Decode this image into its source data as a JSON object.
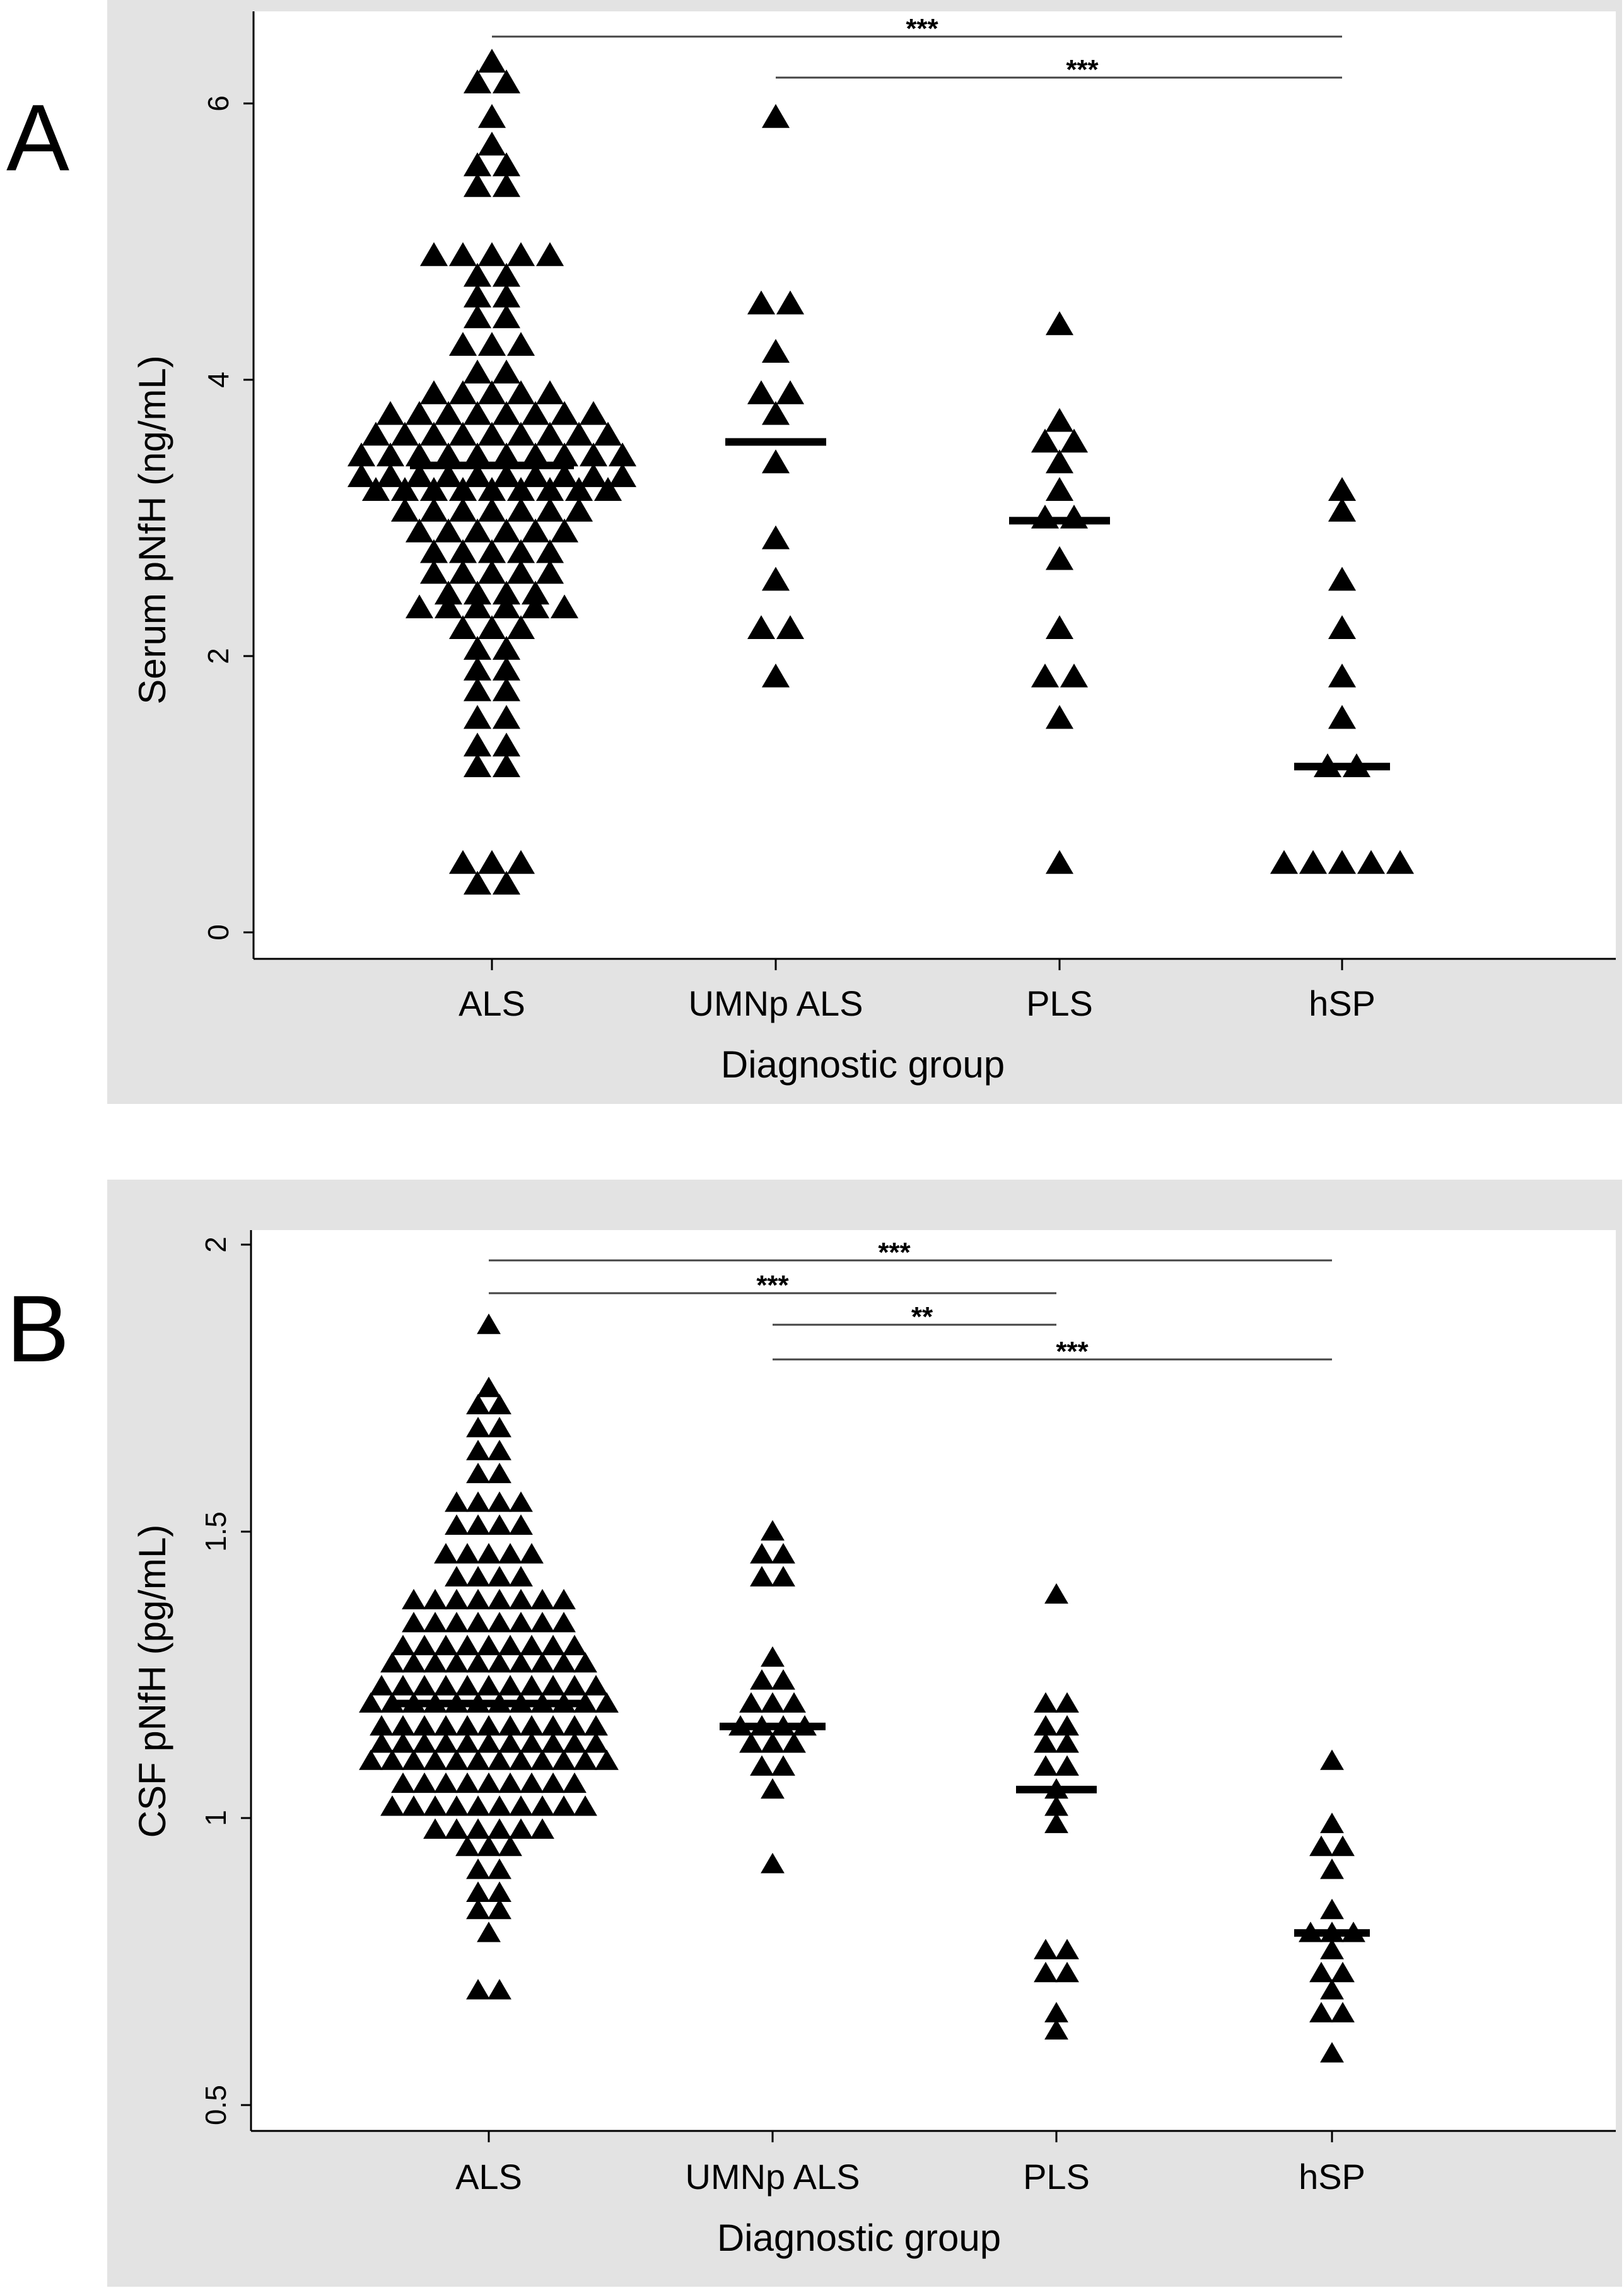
{
  "colors": {
    "panel_background": "#e3e3e3",
    "plot_background": "#ffffff",
    "marker": "#000000"
  },
  "chart_data": [
    {
      "type": "scatter",
      "panel_label": "A",
      "title": "",
      "xlabel": "Diagnostic group",
      "ylabel": "Serum pNfH (ng/mL)",
      "ylim": [
        -0.15,
        6.7
      ],
      "yticks": [
        0,
        2,
        4,
        6
      ],
      "ytick_labels": [
        "0",
        "2",
        "4",
        "6"
      ],
      "categories": [
        "ALS",
        "UMNp ALS",
        "PLS",
        "hSP"
      ],
      "marker": "triangle",
      "series": [
        {
          "name": "ALS",
          "median": 3.38,
          "rows": [
            {
              "y": 6.3,
              "n": 1
            },
            {
              "y": 6.15,
              "n": 2
            },
            {
              "y": 5.9,
              "n": 1
            },
            {
              "y": 5.7,
              "n": 1
            },
            {
              "y": 5.55,
              "n": 2
            },
            {
              "y": 5.4,
              "n": 2
            },
            {
              "y": 4.9,
              "n": 5
            },
            {
              "y": 4.75,
              "n": 2
            },
            {
              "y": 4.6,
              "n": 2
            },
            {
              "y": 4.45,
              "n": 2
            },
            {
              "y": 4.25,
              "n": 3
            },
            {
              "y": 4.05,
              "n": 2
            },
            {
              "y": 3.9,
              "n": 5
            },
            {
              "y": 3.75,
              "n": 8
            },
            {
              "y": 3.6,
              "n": 9
            },
            {
              "y": 3.45,
              "n": 10
            },
            {
              "y": 3.3,
              "n": 10
            },
            {
              "y": 3.2,
              "n": 9
            },
            {
              "y": 3.05,
              "n": 7
            },
            {
              "y": 2.9,
              "n": 6
            },
            {
              "y": 2.75,
              "n": 5
            },
            {
              "y": 2.6,
              "n": 5
            },
            {
              "y": 2.45,
              "n": 4
            },
            {
              "y": 2.35,
              "n": 6
            },
            {
              "y": 2.2,
              "n": 3
            },
            {
              "y": 2.05,
              "n": 2
            },
            {
              "y": 1.9,
              "n": 2
            },
            {
              "y": 1.75,
              "n": 2
            },
            {
              "y": 1.55,
              "n": 2
            },
            {
              "y": 1.35,
              "n": 2
            },
            {
              "y": 1.2,
              "n": 2
            },
            {
              "y": 0.5,
              "n": 3
            },
            {
              "y": 0.35,
              "n": 2
            }
          ]
        },
        {
          "name": "UMNp ALS",
          "median": 3.55,
          "rows": [
            {
              "y": 5.9,
              "n": 1
            },
            {
              "y": 4.55,
              "n": 2
            },
            {
              "y": 4.2,
              "n": 1
            },
            {
              "y": 3.9,
              "n": 2
            },
            {
              "y": 3.75,
              "n": 1
            },
            {
              "y": 3.4,
              "n": 1
            },
            {
              "y": 2.85,
              "n": 1
            },
            {
              "y": 2.55,
              "n": 1
            },
            {
              "y": 2.2,
              "n": 2
            },
            {
              "y": 1.85,
              "n": 1
            }
          ]
        },
        {
          "name": "PLS",
          "median": 2.98,
          "rows": [
            {
              "y": 4.4,
              "n": 1
            },
            {
              "y": 3.7,
              "n": 1
            },
            {
              "y": 3.55,
              "n": 2
            },
            {
              "y": 3.4,
              "n": 1
            },
            {
              "y": 3.2,
              "n": 1
            },
            {
              "y": 3.0,
              "n": 2
            },
            {
              "y": 2.7,
              "n": 1
            },
            {
              "y": 2.2,
              "n": 1
            },
            {
              "y": 1.85,
              "n": 2
            },
            {
              "y": 1.55,
              "n": 1
            },
            {
              "y": 0.5,
              "n": 1
            }
          ]
        },
        {
          "name": "hSP",
          "median": 1.2,
          "rows": [
            {
              "y": 3.2,
              "n": 1
            },
            {
              "y": 3.05,
              "n": 1
            },
            {
              "y": 2.55,
              "n": 1
            },
            {
              "y": 2.2,
              "n": 1
            },
            {
              "y": 1.85,
              "n": 1
            },
            {
              "y": 1.55,
              "n": 1
            },
            {
              "y": 1.2,
              "n": 2
            },
            {
              "y": 0.5,
              "n": 5
            }
          ]
        }
      ],
      "comparisons": [
        {
          "from": "ALS",
          "to": "hSP",
          "label": "***",
          "y": 6.5
        },
        {
          "from": "UMNp ALS",
          "to": "hSP",
          "label": "***",
          "y": 6.2
        }
      ]
    },
    {
      "type": "scatter",
      "panel_label": "B",
      "title": "",
      "xlabel": "Diagnostic group",
      "ylabel": "CSF pNfH (pg/mL)",
      "ylim": [
        0.46,
        2.04
      ],
      "yticks": [
        0.5,
        1,
        1.5,
        2
      ],
      "ytick_labels": [
        "0.5",
        "1",
        "1.5",
        "2"
      ],
      "categories": [
        "ALS",
        "UMNp ALS",
        "PLS",
        "hSP"
      ],
      "marker": "triangle",
      "series": [
        {
          "name": "ALS",
          "median": 1.2,
          "rows": [
            {
              "y": 1.86,
              "n": 1
            },
            {
              "y": 1.75,
              "n": 1
            },
            {
              "y": 1.72,
              "n": 2
            },
            {
              "y": 1.68,
              "n": 2
            },
            {
              "y": 1.64,
              "n": 2
            },
            {
              "y": 1.6,
              "n": 2
            },
            {
              "y": 1.55,
              "n": 4
            },
            {
              "y": 1.51,
              "n": 4
            },
            {
              "y": 1.46,
              "n": 5
            },
            {
              "y": 1.42,
              "n": 4
            },
            {
              "y": 1.38,
              "n": 8
            },
            {
              "y": 1.34,
              "n": 8
            },
            {
              "y": 1.3,
              "n": 9
            },
            {
              "y": 1.27,
              "n": 10
            },
            {
              "y": 1.23,
              "n": 11
            },
            {
              "y": 1.2,
              "n": 12
            },
            {
              "y": 1.16,
              "n": 11
            },
            {
              "y": 1.13,
              "n": 11
            },
            {
              "y": 1.1,
              "n": 12
            },
            {
              "y": 1.06,
              "n": 9
            },
            {
              "y": 1.02,
              "n": 10
            },
            {
              "y": 0.98,
              "n": 6
            },
            {
              "y": 0.95,
              "n": 3
            },
            {
              "y": 0.91,
              "n": 2
            },
            {
              "y": 0.87,
              "n": 2
            },
            {
              "y": 0.84,
              "n": 2
            },
            {
              "y": 0.8,
              "n": 1
            },
            {
              "y": 0.7,
              "n": 2
            }
          ]
        },
        {
          "name": "UMNp ALS",
          "median": 1.16,
          "rows": [
            {
              "y": 1.5,
              "n": 1
            },
            {
              "y": 1.46,
              "n": 2
            },
            {
              "y": 1.42,
              "n": 2
            },
            {
              "y": 1.28,
              "n": 1
            },
            {
              "y": 1.24,
              "n": 2
            },
            {
              "y": 1.2,
              "n": 3
            },
            {
              "y": 1.16,
              "n": 4
            },
            {
              "y": 1.13,
              "n": 3
            },
            {
              "y": 1.09,
              "n": 2
            },
            {
              "y": 1.05,
              "n": 1
            },
            {
              "y": 0.92,
              "n": 1
            }
          ]
        },
        {
          "name": "PLS",
          "median": 1.05,
          "rows": [
            {
              "y": 1.39,
              "n": 1
            },
            {
              "y": 1.2,
              "n": 2
            },
            {
              "y": 1.16,
              "n": 2
            },
            {
              "y": 1.13,
              "n": 2
            },
            {
              "y": 1.09,
              "n": 2
            },
            {
              "y": 1.05,
              "n": 1
            },
            {
              "y": 1.02,
              "n": 1
            },
            {
              "y": 0.99,
              "n": 1
            },
            {
              "y": 0.77,
              "n": 2
            },
            {
              "y": 0.73,
              "n": 2
            },
            {
              "y": 0.66,
              "n": 1
            },
            {
              "y": 0.63,
              "n": 1
            }
          ]
        },
        {
          "name": "hSP",
          "median": 0.8,
          "rows": [
            {
              "y": 1.1,
              "n": 1
            },
            {
              "y": 0.99,
              "n": 1
            },
            {
              "y": 0.95,
              "n": 2
            },
            {
              "y": 0.91,
              "n": 1
            },
            {
              "y": 0.84,
              "n": 1
            },
            {
              "y": 0.8,
              "n": 3
            },
            {
              "y": 0.77,
              "n": 1
            },
            {
              "y": 0.73,
              "n": 2
            },
            {
              "y": 0.7,
              "n": 1
            },
            {
              "y": 0.66,
              "n": 2
            },
            {
              "y": 0.59,
              "n": 1
            }
          ]
        }
      ],
      "comparisons": [
        {
          "from": "ALS",
          "to": "hSP",
          "label": "***",
          "y": 1.97
        },
        {
          "from": "ALS",
          "to": "PLS",
          "label": "***",
          "y": 1.915
        },
        {
          "from": "UMNp ALS",
          "to": "PLS",
          "label": "**",
          "y": 1.86
        },
        {
          "from": "UMNp ALS",
          "to": "hSP",
          "label": "***",
          "y": 1.8
        }
      ]
    }
  ]
}
